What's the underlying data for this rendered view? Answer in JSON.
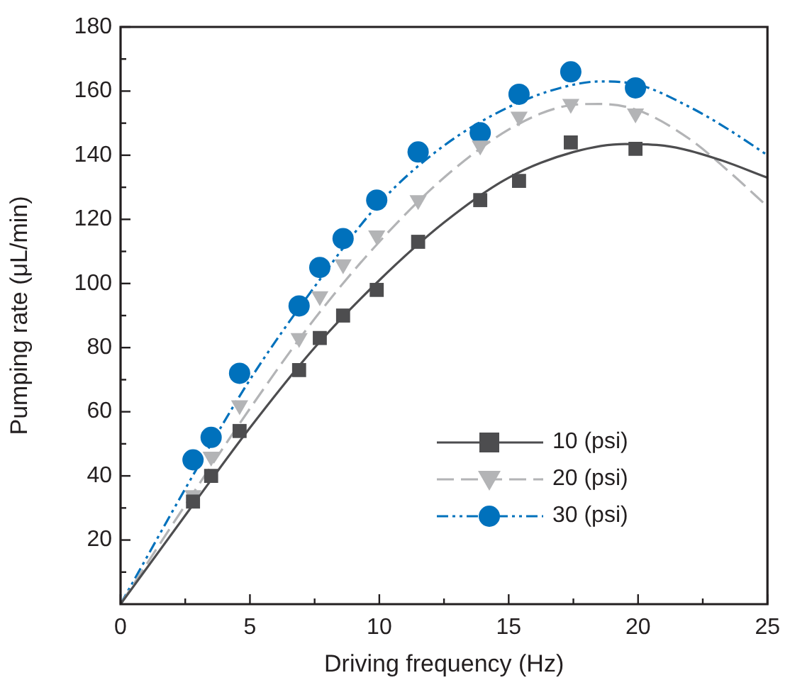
{
  "chart_data": {
    "type": "scatter",
    "xlabel": "Driving frequency (Hz)",
    "ylabel": "Pumping rate (μL/min)",
    "xlim": [
      0,
      25
    ],
    "xticks": [
      0,
      {
        "value": 2.5,
        "label": null
      },
      5,
      {
        "value": 7.5,
        "label": null
      },
      10,
      {
        "value": 12.5,
        "label": null
      },
      15,
      {
        "value": 17.5,
        "label": null
      },
      20,
      {
        "value": 22.5,
        "label": null
      },
      25
    ],
    "ylim": [
      0,
      180
    ],
    "yticks": [
      {
        "value": 10,
        "label": null
      },
      20,
      {
        "value": 30,
        "label": null
      },
      40,
      {
        "value": 50,
        "label": null
      },
      60,
      {
        "value": 70,
        "label": null
      },
      80,
      {
        "value": 90,
        "label": null
      },
      100,
      {
        "value": 110,
        "label": null
      },
      120,
      {
        "value": 130,
        "label": null
      },
      140,
      {
        "value": 150,
        "label": null
      },
      160,
      {
        "value": 170,
        "label": null
      },
      180
    ],
    "grid": false,
    "legend": "bottom right",
    "series": [
      {
        "name": "10 (psi)",
        "color": "#4d4d4f",
        "marker": "square",
        "line_style": "solid",
        "x": [
          2.8,
          3.5,
          4.6,
          6.9,
          7.7,
          8.6,
          9.9,
          11.5,
          13.9,
          15.4,
          17.4,
          19.9
        ],
        "values": [
          32,
          40,
          54,
          73,
          83,
          90,
          98,
          113,
          126,
          132,
          144,
          142
        ]
      },
      {
        "name": "20 (psi)",
        "color": "#b3b4b6",
        "marker": "triangle",
        "line_style": "dashed",
        "x": [
          2.8,
          3.5,
          4.6,
          6.9,
          7.7,
          8.6,
          9.9,
          11.5,
          13.9,
          15.4,
          17.4,
          19.9
        ],
        "values": [
          34,
          46,
          62,
          83,
          96,
          106,
          115,
          126,
          143,
          152,
          156,
          153
        ]
      },
      {
        "name": "30 (psi)",
        "color": "#0071bc",
        "marker": "circle",
        "line_style": "dotted",
        "x": [
          2.8,
          3.5,
          4.6,
          6.9,
          7.7,
          8.6,
          9.9,
          11.5,
          13.9,
          15.4,
          17.4,
          19.9
        ],
        "values": [
          45,
          52,
          72,
          93,
          105,
          114,
          126,
          141,
          147,
          159,
          166,
          161
        ]
      },
      {
        "type": "line",
        "color": "#4d4d4f",
        "marker": "none",
        "line_style": "solid",
        "x": [
          0,
          2.8,
          5,
          7.5,
          10,
          12.5,
          15,
          17.5,
          19.5,
          21,
          23,
          25
        ],
        "values": [
          0,
          31,
          55,
          80,
          101,
          119,
          133,
          141,
          143.5,
          143,
          139,
          133
        ]
      },
      {
        "type": "line",
        "color": "#b3b4b6",
        "marker": "none",
        "line_style": "dashed",
        "x": [
          0,
          3,
          5,
          7.5,
          10,
          12.5,
          15,
          17,
          18.5,
          20,
          22,
          23.5,
          25
        ],
        "values": [
          0,
          37,
          61,
          89,
          113,
          133,
          148,
          155,
          156,
          154,
          145,
          135,
          124
        ]
      },
      {
        "type": "line",
        "color": "#0071bc",
        "marker": "none",
        "line_style": "dotted",
        "x": [
          0,
          3,
          5,
          7.5,
          10,
          12.5,
          15,
          17,
          18.5,
          20,
          22,
          23.5,
          25
        ],
        "values": [
          0,
          43,
          70,
          99,
          125,
          143,
          155,
          161,
          163,
          162,
          155,
          148,
          140
        ]
      }
    ]
  }
}
